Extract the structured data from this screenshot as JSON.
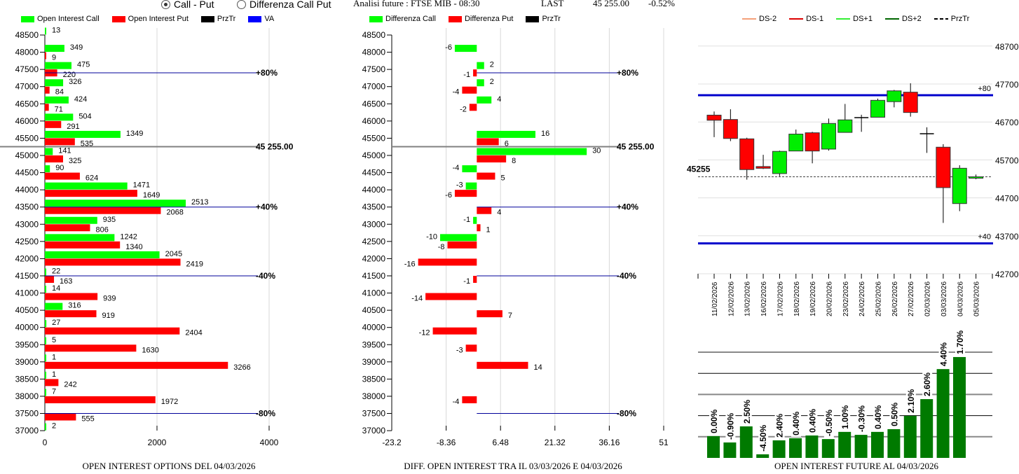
{
  "header": {
    "radio_call_put": "Call - Put",
    "radio_diff": "Differenza Call Put",
    "analysis": "Analisi future : FTSE MIB - 08:30",
    "last_label": "LAST",
    "last_value": "45 255.00",
    "last_change": "-0.52%"
  },
  "colors": {
    "call": "#00ff00",
    "put": "#ff0000",
    "level": "#000099",
    "price": "#808080",
    "va": "#0000ff",
    "future_bar": "#007a00",
    "blue_band": "#0000cc",
    "ds_minus2": "#f4a07a",
    "ds_minus1": "#dd0000",
    "ds_plus1": "#33ee33",
    "ds_plus2": "#006600"
  },
  "legend_left": [
    {
      "label": "Open Interest Call",
      "color": "#00ff00"
    },
    {
      "label": "Open Interest Put",
      "color": "#ff0000"
    },
    {
      "label": "PrzTr",
      "color": "#000000"
    },
    {
      "label": "VA",
      "color": "#0000ff"
    }
  ],
  "legend_mid": [
    {
      "label": "Differenza Call",
      "color": "#00ff00"
    },
    {
      "label": "Differenza Put",
      "color": "#ff0000"
    },
    {
      "label": "PrzTr",
      "color": "#000000"
    }
  ],
  "legend_right": [
    {
      "label": "DS-2",
      "color": "#f4a07a",
      "dashed": false
    },
    {
      "label": "DS-1",
      "color": "#dd0000",
      "dashed": false
    },
    {
      "label": "DS+1",
      "color": "#33ee33",
      "dashed": false
    },
    {
      "label": "DS+2",
      "color": "#006600",
      "dashed": false
    },
    {
      "label": "PrzTr",
      "color": "#000000",
      "dashed": true
    }
  ],
  "chart_data": [
    {
      "type": "bar",
      "orientation": "horizontal",
      "title": "OPEN INTEREST OPTIONS DEL 04/03/2026",
      "categories": [
        "48500",
        "48000",
        "47500",
        "47000",
        "46500",
        "46000",
        "45500",
        "45000",
        "44500",
        "44000",
        "43500",
        "43000",
        "42500",
        "42000",
        "41500",
        "41000",
        "40500",
        "40000",
        "39500",
        "39000",
        "38500",
        "38000",
        "37500",
        "37000"
      ],
      "series": [
        {
          "name": "Open Interest Call",
          "values": [
            13,
            349,
            475,
            326,
            424,
            504,
            1349,
            141,
            90,
            1471,
            2513,
            935,
            1242,
            2045,
            22,
            14,
            316,
            27,
            5,
            1,
            1,
            7,
            null,
            2
          ]
        },
        {
          "name": "Open Interest Put",
          "values": [
            null,
            9,
            220,
            84,
            71,
            291,
            535,
            325,
            624,
            1649,
            2068,
            806,
            1340,
            2419,
            163,
            939,
            919,
            2404,
            1630,
            3266,
            242,
            1972,
            555,
            null
          ]
        }
      ],
      "xlim": [
        0,
        4000
      ],
      "xticks": [
        "0",
        "2000",
        "4000"
      ],
      "price_line": {
        "value": 45255,
        "label": "45 255.00"
      },
      "levels": [
        {
          "label": "+80%",
          "value": 47400
        },
        {
          "label": "+40%",
          "value": 43500
        },
        {
          "label": "-40%",
          "value": 41500
        },
        {
          "label": "-80%",
          "value": 37500
        }
      ]
    },
    {
      "type": "bar",
      "orientation": "horizontal",
      "title": "DIFF. OPEN INTEREST TRA IL 03/03/2026 E 04/03/2026",
      "categories": [
        "48500",
        "48000",
        "47500",
        "47000",
        "46500",
        "46000",
        "45500",
        "45000",
        "44500",
        "44000",
        "43500",
        "43000",
        "42500",
        "42000",
        "41500",
        "41000",
        "40500",
        "40000",
        "39500",
        "39000",
        "38500",
        "38000",
        "37500",
        "37000"
      ],
      "series": [
        {
          "name": "Differenza Call",
          "values": [
            null,
            -6,
            2,
            2,
            4,
            null,
            16,
            30,
            -4,
            -3,
            null,
            -1,
            -10,
            null,
            null,
            null,
            null,
            null,
            null,
            null,
            null,
            null,
            null,
            null
          ]
        },
        {
          "name": "Differenza Put",
          "values": [
            null,
            null,
            -1,
            -4,
            -2,
            null,
            6,
            8,
            5,
            -6,
            4,
            1,
            -8,
            -16,
            -1,
            -14,
            7,
            -12,
            -3,
            14,
            null,
            -4,
            null,
            null
          ]
        }
      ],
      "xlim": [
        -23.2,
        51
      ],
      "xticks": [
        "-23.2",
        "-8.36",
        "6.48",
        "21.32",
        "36.16",
        "51"
      ],
      "price_line": {
        "value": 45255,
        "label": "45 255.00"
      },
      "levels": [
        {
          "label": "+80%",
          "value": 47400
        },
        {
          "label": "+40%",
          "value": 43500
        },
        {
          "label": "-40%",
          "value": 41500
        },
        {
          "label": "-80%",
          "value": 37500
        }
      ]
    },
    {
      "type": "candlestick",
      "dates": [
        "11/02/2026",
        "12/02/2026",
        "13/02/2026",
        "16/02/2026",
        "17/02/2026",
        "18/02/2026",
        "19/02/2026",
        "20/02/2026",
        "23/02/2026",
        "24/02/2026",
        "25/02/2026",
        "26/02/2026",
        "27/02/2026",
        "02/03/2026",
        "03/03/2026",
        "04/03/2026",
        "05/03/2026"
      ],
      "ohlc": [
        [
          46880,
          46975,
          46300,
          46745
        ],
        [
          46765,
          47035,
          46195,
          46265
        ],
        [
          46255,
          46285,
          45180,
          45445
        ],
        [
          45525,
          45835,
          45460,
          45480
        ],
        [
          45340,
          45945,
          45270,
          45925
        ],
        [
          45935,
          46500,
          45935,
          46380
        ],
        [
          46415,
          46440,
          45610,
          45935
        ],
        [
          45985,
          46790,
          45945,
          46660
        ],
        [
          46425,
          47175,
          46425,
          46755
        ],
        [
          46815,
          46890,
          46440,
          46815
        ],
        [
          46825,
          47315,
          46825,
          47270
        ],
        [
          47235,
          47545,
          47085,
          47520
        ],
        [
          47485,
          47720,
          46840,
          46950
        ],
        [
          46390,
          46560,
          45885,
          46390
        ],
        [
          46035,
          46115,
          44040,
          44970
        ],
        [
          44550,
          45560,
          44350,
          45480
        ],
        [
          45250,
          45315,
          45190,
          45255
        ]
      ],
      "ylim": [
        42700,
        48700
      ],
      "yticks": [
        "48700",
        "47700",
        "46700",
        "45700",
        "44700",
        "43700",
        "42700"
      ],
      "price_line": {
        "value": 45255,
        "label": "45255"
      },
      "bands": [
        {
          "label": "+80",
          "value": 47405
        },
        {
          "label": "+40",
          "value": 43500
        }
      ]
    },
    {
      "type": "bar",
      "title": "OPEN INTEREST FUTURE AL 04/03/2026",
      "categories": [
        "11/02/2026",
        "12/02/2026",
        "13/02/2026",
        "16/02/2026",
        "17/02/2026",
        "18/02/2026",
        "19/02/2026",
        "20/02/2026",
        "23/02/2026",
        "24/02/2026",
        "25/02/2026",
        "26/02/2026",
        "27/02/2026",
        "02/03/2026",
        "03/03/2026",
        "04/03/2026"
      ],
      "values": [
        1.03,
        0.73,
        1.49,
        0.17,
        0.83,
        0.93,
        1.06,
        0.89,
        1.23,
        1.09,
        1.23,
        1.36,
        1.99,
        2.78,
        4.2,
        4.77
      ],
      "labels": [
        "0.00%",
        "-0.90%",
        "2.50%",
        "-4.50%",
        "2.40%",
        "0.40%",
        "0.40%",
        "-0.50%",
        "1.00%",
        "-0.30%",
        "0.40%",
        "0.50%",
        "2.10%",
        "2.60%",
        "4.40%",
        "1.70%"
      ],
      "ylim": [
        0,
        5.5
      ],
      "grid_levels": [
        1,
        2,
        3,
        4,
        5
      ]
    }
  ]
}
